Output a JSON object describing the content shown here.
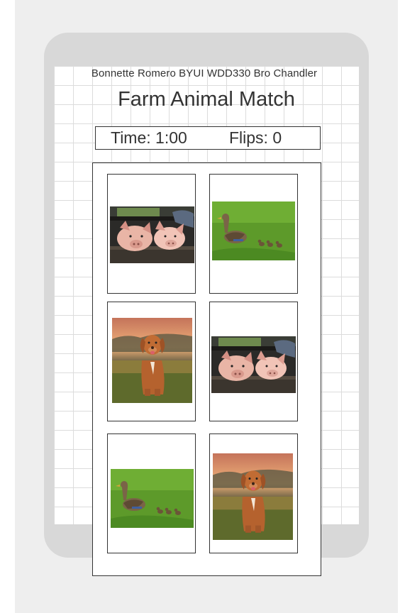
{
  "header": {
    "author": "Bonnette Romero BYUI WDD330 Bro Chandler",
    "title": "Farm Animal Match"
  },
  "status": {
    "time_label": "Time:",
    "time_value": "1:00",
    "flips_label": "Flips:",
    "flips_value": "0"
  },
  "cards": [
    {
      "animal": "pigs",
      "state": "face-up"
    },
    {
      "animal": "duck",
      "state": "face-up"
    },
    {
      "animal": "dog",
      "state": "face-up"
    },
    {
      "animal": "pigs",
      "state": "face-up"
    },
    {
      "animal": "duck",
      "state": "face-up"
    },
    {
      "animal": "dog",
      "state": "face-up"
    }
  ]
}
